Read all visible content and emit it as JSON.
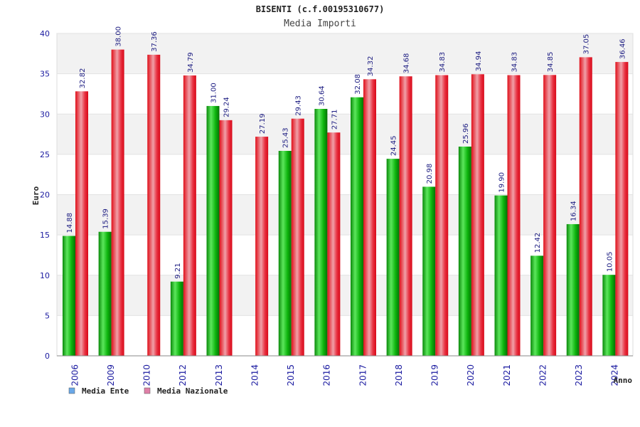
{
  "chart_data": {
    "type": "bar",
    "title": "BISENTI (c.f.00195310677)",
    "subtitle": "Media Importi",
    "xlabel": "Anno",
    "ylabel": "Euro",
    "ylim": [
      0,
      40
    ],
    "yticks": [
      0,
      5,
      10,
      15,
      20,
      25,
      30,
      35,
      40
    ],
    "grid": true,
    "legend_position": "bottom-left",
    "categories": [
      "2006",
      "2009",
      "2010",
      "2012",
      "2013",
      "2014",
      "2015",
      "2016",
      "2017",
      "2018",
      "2019",
      "2020",
      "2021",
      "2022",
      "2023",
      "2024"
    ],
    "series": [
      {
        "name": "Media Ente",
        "color": "#0aa80a",
        "legend_color": "#6aa8e8",
        "values": [
          14.88,
          15.39,
          null,
          9.21,
          31.0,
          null,
          25.43,
          30.64,
          32.08,
          24.45,
          20.98,
          25.96,
          19.9,
          12.42,
          16.34,
          10.05
        ],
        "labels": [
          "14.88",
          "15.39",
          "",
          "9.21",
          "31.00",
          "",
          "25.43",
          "30.64",
          "32.08",
          "24.45",
          "20.98",
          "25.96",
          "19.90",
          "12.42",
          "16.34",
          "10.05"
        ]
      },
      {
        "name": "Media Nazionale",
        "color": "#e8202a",
        "legend_color": "#e080a8",
        "values": [
          32.82,
          38.0,
          37.36,
          34.79,
          29.24,
          27.19,
          29.43,
          27.71,
          34.32,
          34.68,
          34.83,
          34.94,
          34.83,
          34.85,
          37.05,
          36.46
        ],
        "labels": [
          "32.82",
          "38.00",
          "37.36",
          "34.79",
          "29.24",
          "27.19",
          "29.43",
          "27.71",
          "34.32",
          "34.68",
          "34.83",
          "34.94",
          "34.83",
          "34.85",
          "37.05",
          "36.46"
        ]
      }
    ]
  }
}
